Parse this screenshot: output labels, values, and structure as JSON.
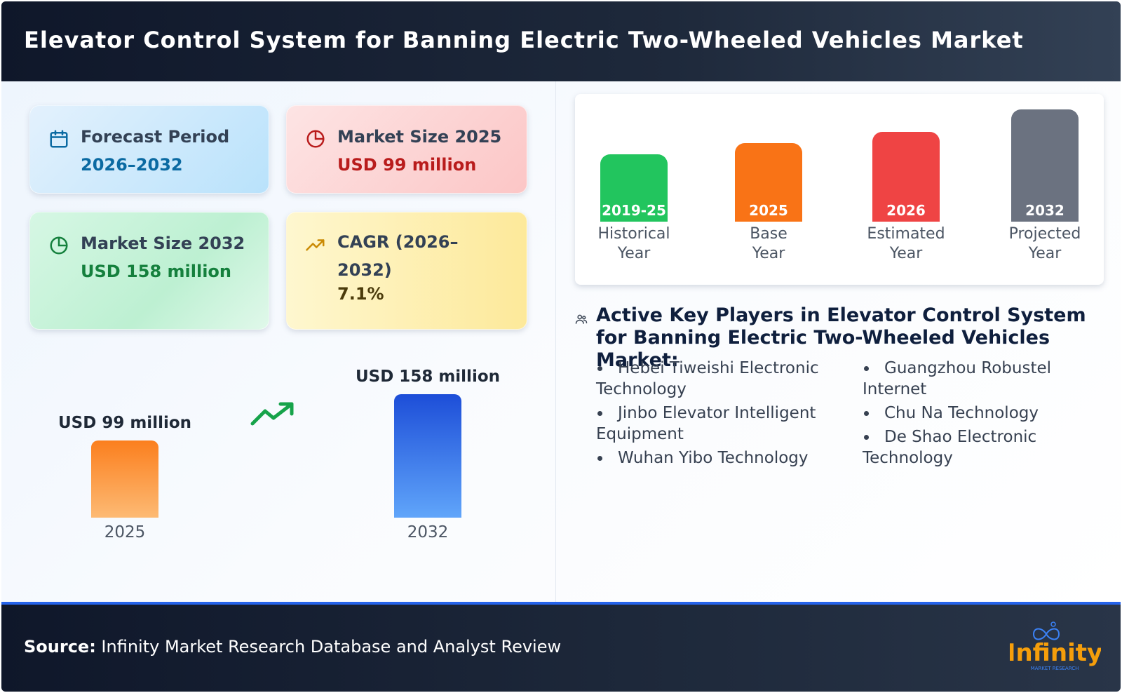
{
  "header": {
    "title": "Elevator Control System for Banning Electric Two-Wheeled Vehicles Market"
  },
  "cards": {
    "forecast": {
      "title": "Forecast Period",
      "value": "2026–2032",
      "icon": "calendar-icon"
    },
    "market_2025": {
      "title": "Market Size 2025",
      "value": "USD 99 million",
      "icon": "pie-chart-icon"
    },
    "market_2032": {
      "title": "Market Size 2032",
      "value": "USD 158 million",
      "icon": "pie-chart-icon"
    },
    "cagr": {
      "title": "CAGR (2026–2032)",
      "value": "7.1%",
      "icon": "trend-up-icon"
    }
  },
  "chart_data": [
    {
      "type": "bar",
      "categories": [
        "2025",
        "2032"
      ],
      "values": [
        99,
        158
      ],
      "value_labels": [
        "USD 99 million",
        "USD 158 million"
      ],
      "unit": "USD million",
      "colors": [
        "#fb923c",
        "#2563eb"
      ],
      "trend_icon": "trend-up-icon"
    },
    {
      "type": "bar",
      "categories": [
        "2019-25",
        "2025",
        "2026",
        "2032"
      ],
      "captions": [
        [
          "Historical",
          "Year"
        ],
        [
          "Base",
          "Year"
        ],
        [
          "Estimated",
          "Year"
        ],
        [
          "Projected",
          "Year"
        ]
      ],
      "colors": [
        "#22c55e",
        "#f97316",
        "#ef4444",
        "#6b7280"
      ]
    }
  ],
  "players": {
    "title": "Active Key Players in Elevator Control System for Banning Electric Two-Wheeled Vehicles Market:",
    "icon": "users-icon",
    "column_left": [
      "Hebei Tiweishi Electronic Technology",
      "Jinbo Elevator Intelligent Equipment",
      "Wuhan Yibo Technology"
    ],
    "column_right": [
      "Guangzhou Robustel Internet",
      "Chu Na Technology",
      "De Shao Electronic Technology"
    ]
  },
  "footer": {
    "source_label": "Source:",
    "source_text": " Infinity Market Research Database and Analyst Review",
    "logo_text": "Infinity",
    "logo_subtext": "MARKET RESEARCH"
  }
}
